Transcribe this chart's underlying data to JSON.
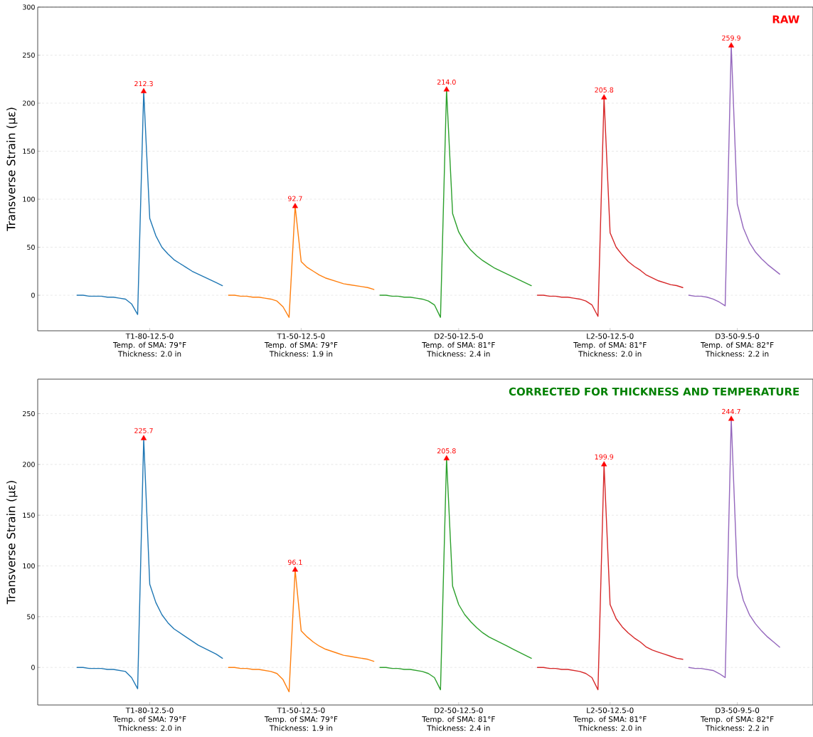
{
  "chart_data": [
    {
      "type": "line",
      "title": "RAW",
      "ylabel": "Transverse Strain (με)",
      "ylim": [
        -37,
        300
      ],
      "yticks": [
        0,
        50,
        100,
        150,
        200,
        250,
        300
      ],
      "grid": "y",
      "categories": [
        null,
        null,
        null,
        null,
        null,
        null,
        null,
        null,
        null,
        null,
        null,
        null,
        null,
        null,
        null,
        null,
        null,
        null,
        "T1-80-12.5-0\nTemp. of SMA: 79°F\nThickness: 2.0 in",
        null,
        null,
        null,
        null,
        null,
        null,
        null,
        null,
        null,
        null,
        null,
        null,
        null,
        null,
        null,
        null,
        null,
        null,
        null,
        null,
        null,
        null,
        null,
        null,
        "T1-50-12.5-0\nTemp. of SMA: 79°F\nThickness: 1.9 in",
        null,
        null,
        null,
        null,
        null,
        null,
        null,
        null,
        null,
        null,
        null,
        null,
        null,
        null,
        null,
        null,
        null,
        null,
        null,
        null,
        null,
        null,
        null,
        null,
        null,
        "D2-50-12.5-0\nTemp. of SMA: 81°F\nThickness: 2.4 in",
        null,
        null,
        null,
        null,
        null,
        null,
        null,
        null,
        null,
        null,
        null,
        null,
        null,
        null,
        null,
        null,
        null,
        null,
        null,
        null,
        null,
        null,
        null,
        null,
        "L2-50-12.5-0\nTemp. of SMA: 81°F\nThickness: 2.0 in",
        null,
        null,
        null,
        null,
        null,
        null,
        null,
        null,
        null,
        null,
        null,
        null,
        null,
        null,
        null,
        null,
        null,
        null,
        null,
        null,
        "D3-50-9.5-0\nTemp. of SMA: 82°F\nThickness: 2.2 in",
        null,
        null,
        null,
        null,
        null,
        null,
        null,
        null,
        null,
        null,
        null,
        null
      ],
      "series": [
        {
          "color": "#1f77b4",
          "values": [
            null,
            null,
            null,
            null,
            null,
            null,
            0,
            0,
            -1,
            -1,
            -1,
            -2,
            -2,
            -3,
            -4,
            -9,
            -20,
            212.3,
            80,
            62,
            50,
            43,
            37,
            33,
            29,
            25,
            22,
            19,
            16,
            13,
            10,
            null,
            null,
            null,
            null,
            null,
            null,
            null,
            null,
            null,
            null,
            null,
            null,
            null,
            null,
            null,
            null,
            null,
            null,
            null,
            null,
            null,
            null,
            null,
            null,
            null,
            null,
            null,
            null,
            null,
            null,
            null,
            null,
            null,
            null,
            null,
            null,
            null,
            null,
            null,
            null,
            null,
            null,
            null,
            null,
            null,
            null,
            null,
            null,
            null,
            null,
            null,
            null,
            null,
            null,
            null,
            null,
            null,
            null,
            null,
            null,
            null,
            null,
            null,
            null,
            null,
            null,
            null,
            null,
            null,
            null,
            null,
            null,
            null,
            null,
            null,
            null,
            null,
            null,
            null,
            null,
            null,
            null,
            null,
            null,
            null,
            null,
            null,
            null,
            null,
            null,
            null,
            null,
            null,
            null,
            null,
            null,
            null
          ]
        },
        {
          "color": "#ff7f0e",
          "values": [
            null,
            null,
            null,
            null,
            null,
            null,
            null,
            null,
            null,
            null,
            null,
            null,
            null,
            null,
            null,
            null,
            null,
            null,
            null,
            null,
            null,
            null,
            null,
            null,
            null,
            null,
            null,
            null,
            null,
            null,
            null,
            0,
            0,
            -1,
            -1,
            -2,
            -2,
            -3,
            -4,
            -6,
            -12,
            -23,
            92.7,
            35,
            29,
            25,
            21,
            18,
            16,
            14,
            12,
            11,
            10,
            9,
            8,
            6,
            null,
            null,
            null,
            null,
            null,
            null,
            null,
            null,
            null,
            null,
            null,
            null,
            null,
            null,
            null,
            null,
            null,
            null,
            null,
            null,
            null,
            null,
            null,
            null,
            null,
            null,
            null,
            null,
            null,
            null,
            null,
            null,
            null,
            null,
            null,
            null,
            null,
            null,
            null,
            null,
            null,
            null,
            null,
            null,
            null,
            null,
            null,
            null,
            null,
            null,
            null,
            null,
            null,
            null,
            null,
            null,
            null,
            null,
            null,
            null,
            null,
            null,
            null,
            null,
            null,
            null,
            null,
            null,
            null,
            null,
            null,
            null
          ]
        },
        {
          "color": "#2ca02c",
          "values": [
            null,
            null,
            null,
            null,
            null,
            null,
            null,
            null,
            null,
            null,
            null,
            null,
            null,
            null,
            null,
            null,
            null,
            null,
            null,
            null,
            null,
            null,
            null,
            null,
            null,
            null,
            null,
            null,
            null,
            null,
            null,
            null,
            null,
            null,
            null,
            null,
            null,
            null,
            null,
            null,
            null,
            null,
            null,
            null,
            null,
            null,
            null,
            null,
            null,
            null,
            null,
            null,
            null,
            null,
            null,
            null,
            0,
            0,
            -1,
            -1,
            -2,
            -2,
            -3,
            -4,
            -6,
            -10,
            -23,
            214.0,
            85,
            66,
            55,
            47,
            41,
            36,
            32,
            28,
            25,
            22,
            19,
            16,
            13,
            10,
            null,
            null,
            null,
            null,
            null,
            null,
            null,
            null,
            null,
            null,
            null,
            null,
            null,
            null,
            null,
            null,
            null,
            null,
            null,
            null,
            null,
            null,
            null,
            null,
            null,
            null,
            null,
            null,
            null,
            null,
            null,
            null,
            null,
            null,
            null,
            null,
            null,
            null,
            null,
            null,
            null,
            null,
            null,
            null,
            null,
            null
          ]
        },
        {
          "color": "#d62728",
          "values": [
            null,
            null,
            null,
            null,
            null,
            null,
            null,
            null,
            null,
            null,
            null,
            null,
            null,
            null,
            null,
            null,
            null,
            null,
            null,
            null,
            null,
            null,
            null,
            null,
            null,
            null,
            null,
            null,
            null,
            null,
            null,
            null,
            null,
            null,
            null,
            null,
            null,
            null,
            null,
            null,
            null,
            null,
            null,
            null,
            null,
            null,
            null,
            null,
            null,
            null,
            null,
            null,
            null,
            null,
            null,
            null,
            null,
            null,
            null,
            null,
            null,
            null,
            null,
            null,
            null,
            null,
            null,
            null,
            null,
            null,
            null,
            null,
            null,
            null,
            null,
            null,
            null,
            null,
            null,
            null,
            null,
            null,
            0,
            0,
            -1,
            -1,
            -2,
            -2,
            -3,
            -4,
            -6,
            -10,
            -22,
            205.8,
            65,
            50,
            42,
            35,
            30,
            26,
            21,
            18,
            15,
            13,
            11,
            10,
            8,
            null,
            null,
            null,
            null,
            null,
            null,
            null,
            null,
            null,
            null,
            null,
            null,
            null,
            null,
            null,
            null,
            null,
            null,
            null,
            null,
            null
          ]
        },
        {
          "color": "#9467bd",
          "values": [
            null,
            null,
            null,
            null,
            null,
            null,
            null,
            null,
            null,
            null,
            null,
            null,
            null,
            null,
            null,
            null,
            null,
            null,
            null,
            null,
            null,
            null,
            null,
            null,
            null,
            null,
            null,
            null,
            null,
            null,
            null,
            null,
            null,
            null,
            null,
            null,
            null,
            null,
            null,
            null,
            null,
            null,
            null,
            null,
            null,
            null,
            null,
            null,
            null,
            null,
            null,
            null,
            null,
            null,
            null,
            null,
            null,
            null,
            null,
            null,
            null,
            null,
            null,
            null,
            null,
            null,
            null,
            null,
            null,
            null,
            null,
            null,
            null,
            null,
            null,
            null,
            null,
            null,
            null,
            null,
            null,
            null,
            null,
            null,
            null,
            null,
            null,
            null,
            null,
            null,
            null,
            null,
            null,
            null,
            null,
            null,
            null,
            null,
            null,
            null,
            null,
            null,
            null,
            null,
            null,
            null,
            null,
            0,
            -1,
            -1,
            -2,
            -4,
            -7,
            -11,
            259.9,
            95,
            70,
            55,
            45,
            38,
            32,
            27,
            22,
            null,
            null,
            null,
            null,
            null
          ]
        },
        {
          "type": "scatter",
          "marker": "triangle",
          "color": "#ff0000",
          "values": [
            null,
            null,
            null,
            null,
            null,
            null,
            null,
            null,
            null,
            null,
            null,
            null,
            null,
            null,
            null,
            null,
            null,
            212.3,
            null,
            null,
            null,
            null,
            null,
            null,
            null,
            null,
            null,
            null,
            null,
            null,
            null,
            null,
            null,
            null,
            null,
            null,
            null,
            null,
            null,
            null,
            null,
            null,
            92.7,
            null,
            null,
            null,
            null,
            null,
            null,
            null,
            null,
            null,
            null,
            null,
            null,
            null,
            null,
            null,
            null,
            null,
            null,
            null,
            null,
            null,
            null,
            null,
            null,
            214.0,
            null,
            null,
            null,
            null,
            null,
            null,
            null,
            null,
            null,
            null,
            null,
            null,
            null,
            null,
            null,
            null,
            null,
            null,
            null,
            null,
            null,
            null,
            null,
            null,
            null,
            205.8,
            null,
            null,
            null,
            null,
            null,
            null,
            null,
            null,
            null,
            null,
            null,
            null,
            null,
            null,
            null,
            null,
            null,
            null,
            null,
            null,
            259.9,
            null,
            null,
            null,
            null,
            null,
            null,
            null,
            null,
            null,
            null,
            null,
            null,
            null
          ],
          "value_labels": [
            null,
            null,
            null,
            null,
            null,
            null,
            null,
            null,
            null,
            null,
            null,
            null,
            null,
            null,
            null,
            null,
            null,
            "212.3",
            null,
            null,
            null,
            null,
            null,
            null,
            null,
            null,
            null,
            null,
            null,
            null,
            null,
            null,
            null,
            null,
            null,
            null,
            null,
            null,
            null,
            null,
            null,
            null,
            "92.7",
            null,
            null,
            null,
            null,
            null,
            null,
            null,
            null,
            null,
            null,
            null,
            null,
            null,
            null,
            null,
            null,
            null,
            null,
            null,
            null,
            null,
            null,
            null,
            null,
            "214.0",
            null,
            null,
            null,
            null,
            null,
            null,
            null,
            null,
            null,
            null,
            null,
            null,
            null,
            null,
            null,
            null,
            null,
            null,
            null,
            null,
            null,
            null,
            null,
            null,
            null,
            "205.8",
            null,
            null,
            null,
            null,
            null,
            null,
            null,
            null,
            null,
            null,
            null,
            null,
            null,
            null,
            null,
            null,
            null,
            null,
            null,
            null,
            "259.9",
            null,
            null,
            null,
            null,
            null,
            null,
            null,
            null,
            null,
            null,
            null,
            null,
            null
          ]
        }
      ]
    },
    {
      "type": "line",
      "title": "CORRECTED FOR THICKNESS AND TEMPERATURE",
      "ylabel": "Transverse Strain (με)",
      "ylim": [
        -37,
        284
      ],
      "yticks": [
        0,
        50,
        100,
        150,
        200,
        250
      ],
      "grid": "y",
      "categories": [
        null,
        null,
        null,
        null,
        null,
        null,
        null,
        null,
        null,
        null,
        null,
        null,
        null,
        null,
        null,
        null,
        null,
        null,
        "T1-80-12.5-0\nTemp. of SMA: 79°F\nThickness: 2.0 in",
        null,
        null,
        null,
        null,
        null,
        null,
        null,
        null,
        null,
        null,
        null,
        null,
        null,
        null,
        null,
        null,
        null,
        null,
        null,
        null,
        null,
        null,
        null,
        null,
        "T1-50-12.5-0\nTemp. of SMA: 79°F\nThickness: 1.9 in",
        null,
        null,
        null,
        null,
        null,
        null,
        null,
        null,
        null,
        null,
        null,
        null,
        null,
        null,
        null,
        null,
        null,
        null,
        null,
        null,
        null,
        null,
        null,
        null,
        null,
        "D2-50-12.5-0\nTemp. of SMA: 81°F\nThickness: 2.4 in",
        null,
        null,
        null,
        null,
        null,
        null,
        null,
        null,
        null,
        null,
        null,
        null,
        null,
        null,
        null,
        null,
        null,
        null,
        null,
        null,
        null,
        null,
        null,
        null,
        "L2-50-12.5-0\nTemp. of SMA: 81°F\nThickness: 2.0 in",
        null,
        null,
        null,
        null,
        null,
        null,
        null,
        null,
        null,
        null,
        null,
        null,
        null,
        null,
        null,
        null,
        null,
        null,
        null,
        null,
        "D3-50-9.5-0\nTemp. of SMA: 82°F\nThickness: 2.2 in",
        null,
        null,
        null,
        null,
        null,
        null,
        null,
        null,
        null,
        null,
        null,
        null
      ],
      "series": [
        {
          "color": "#1f77b4",
          "values": [
            null,
            null,
            null,
            null,
            null,
            null,
            0,
            0,
            -1,
            -1,
            -1,
            -2,
            -2,
            -3,
            -4,
            -10,
            -21,
            225.7,
            82,
            64,
            52,
            44,
            38,
            34,
            30,
            26,
            22,
            19,
            16,
            13,
            9,
            null,
            null,
            null,
            null,
            null,
            null,
            null,
            null,
            null,
            null,
            null,
            null,
            null,
            null,
            null,
            null,
            null,
            null,
            null,
            null,
            null,
            null,
            null,
            null,
            null,
            null,
            null,
            null,
            null,
            null,
            null,
            null,
            null,
            null,
            null,
            null,
            null,
            null,
            null,
            null,
            null,
            null,
            null,
            null,
            null,
            null,
            null,
            null,
            null,
            null,
            null,
            null,
            null,
            null,
            null,
            null,
            null,
            null,
            null,
            null,
            null,
            null,
            null,
            null,
            null,
            null,
            null,
            null,
            null,
            null,
            null,
            null,
            null,
            null,
            null,
            null,
            null,
            null,
            null,
            null,
            null,
            null,
            null,
            null,
            null,
            null,
            null,
            null,
            null,
            null,
            null,
            null,
            null,
            null,
            null,
            null,
            null
          ]
        },
        {
          "color": "#ff7f0e",
          "values": [
            null,
            null,
            null,
            null,
            null,
            null,
            null,
            null,
            null,
            null,
            null,
            null,
            null,
            null,
            null,
            null,
            null,
            null,
            null,
            null,
            null,
            null,
            null,
            null,
            null,
            null,
            null,
            null,
            null,
            null,
            null,
            0,
            0,
            -1,
            -1,
            -2,
            -2,
            -3,
            -4,
            -6,
            -12,
            -24,
            96.1,
            36,
            30,
            25,
            21,
            18,
            16,
            14,
            12,
            11,
            10,
            9,
            8,
            6,
            null,
            null,
            null,
            null,
            null,
            null,
            null,
            null,
            null,
            null,
            null,
            null,
            null,
            null,
            null,
            null,
            null,
            null,
            null,
            null,
            null,
            null,
            null,
            null,
            null,
            null,
            null,
            null,
            null,
            null,
            null,
            null,
            null,
            null,
            null,
            null,
            null,
            null,
            null,
            null,
            null,
            null,
            null,
            null,
            null,
            null,
            null,
            null,
            null,
            null,
            null,
            null,
            null,
            null,
            null,
            null,
            null,
            null,
            null,
            null,
            null,
            null,
            null,
            null,
            null,
            null,
            null,
            null,
            null,
            null,
            null,
            null
          ]
        },
        {
          "color": "#2ca02c",
          "values": [
            null,
            null,
            null,
            null,
            null,
            null,
            null,
            null,
            null,
            null,
            null,
            null,
            null,
            null,
            null,
            null,
            null,
            null,
            null,
            null,
            null,
            null,
            null,
            null,
            null,
            null,
            null,
            null,
            null,
            null,
            null,
            null,
            null,
            null,
            null,
            null,
            null,
            null,
            null,
            null,
            null,
            null,
            null,
            null,
            null,
            null,
            null,
            null,
            null,
            null,
            null,
            null,
            null,
            null,
            null,
            null,
            0,
            0,
            -1,
            -1,
            -2,
            -2,
            -3,
            -4,
            -6,
            -10,
            -22,
            205.8,
            80,
            62,
            52,
            45,
            39,
            34,
            30,
            27,
            24,
            21,
            18,
            15,
            12,
            9,
            null,
            null,
            null,
            null,
            null,
            null,
            null,
            null,
            null,
            null,
            null,
            null,
            null,
            null,
            null,
            null,
            null,
            null,
            null,
            null,
            null,
            null,
            null,
            null,
            null,
            null,
            null,
            null,
            null,
            null,
            null,
            null,
            null,
            null,
            null,
            null,
            null,
            null,
            null,
            null,
            null,
            null,
            null,
            null,
            null,
            null
          ]
        },
        {
          "color": "#d62728",
          "values": [
            null,
            null,
            null,
            null,
            null,
            null,
            null,
            null,
            null,
            null,
            null,
            null,
            null,
            null,
            null,
            null,
            null,
            null,
            null,
            null,
            null,
            null,
            null,
            null,
            null,
            null,
            null,
            null,
            null,
            null,
            null,
            null,
            null,
            null,
            null,
            null,
            null,
            null,
            null,
            null,
            null,
            null,
            null,
            null,
            null,
            null,
            null,
            null,
            null,
            null,
            null,
            null,
            null,
            null,
            null,
            null,
            null,
            null,
            null,
            null,
            null,
            null,
            null,
            null,
            null,
            null,
            null,
            null,
            null,
            null,
            null,
            null,
            null,
            null,
            null,
            null,
            null,
            null,
            null,
            null,
            null,
            null,
            0,
            0,
            -1,
            -1,
            -2,
            -2,
            -3,
            -4,
            -6,
            -10,
            -22,
            199.9,
            62,
            48,
            40,
            34,
            29,
            25,
            20,
            17,
            15,
            13,
            11,
            9,
            8,
            null,
            null,
            null,
            null,
            null,
            null,
            null,
            null,
            null,
            null,
            null,
            null,
            null,
            null,
            null,
            null,
            null,
            null,
            null,
            null,
            null
          ]
        },
        {
          "color": "#9467bd",
          "values": [
            null,
            null,
            null,
            null,
            null,
            null,
            null,
            null,
            null,
            null,
            null,
            null,
            null,
            null,
            null,
            null,
            null,
            null,
            null,
            null,
            null,
            null,
            null,
            null,
            null,
            null,
            null,
            null,
            null,
            null,
            null,
            null,
            null,
            null,
            null,
            null,
            null,
            null,
            null,
            null,
            null,
            null,
            null,
            null,
            null,
            null,
            null,
            null,
            null,
            null,
            null,
            null,
            null,
            null,
            null,
            null,
            null,
            null,
            null,
            null,
            null,
            null,
            null,
            null,
            null,
            null,
            null,
            null,
            null,
            null,
            null,
            null,
            null,
            null,
            null,
            null,
            null,
            null,
            null,
            null,
            null,
            null,
            null,
            null,
            null,
            null,
            null,
            null,
            null,
            null,
            null,
            null,
            null,
            null,
            null,
            null,
            null,
            null,
            null,
            null,
            null,
            null,
            null,
            null,
            null,
            null,
            null,
            0,
            -1,
            -1,
            -2,
            -3,
            -6,
            -10,
            244.7,
            90,
            66,
            52,
            43,
            36,
            30,
            25,
            20,
            null,
            null,
            null,
            null,
            null
          ]
        },
        {
          "type": "scatter",
          "marker": "triangle",
          "color": "#ff0000",
          "values": [
            null,
            null,
            null,
            null,
            null,
            null,
            null,
            null,
            null,
            null,
            null,
            null,
            null,
            null,
            null,
            null,
            null,
            225.7,
            null,
            null,
            null,
            null,
            null,
            null,
            null,
            null,
            null,
            null,
            null,
            null,
            null,
            null,
            null,
            null,
            null,
            null,
            null,
            null,
            null,
            null,
            null,
            null,
            96.1,
            null,
            null,
            null,
            null,
            null,
            null,
            null,
            null,
            null,
            null,
            null,
            null,
            null,
            null,
            null,
            null,
            null,
            null,
            null,
            null,
            null,
            null,
            null,
            null,
            205.8,
            null,
            null,
            null,
            null,
            null,
            null,
            null,
            null,
            null,
            null,
            null,
            null,
            null,
            null,
            null,
            null,
            null,
            null,
            null,
            null,
            null,
            null,
            null,
            null,
            null,
            199.9,
            null,
            null,
            null,
            null,
            null,
            null,
            null,
            null,
            null,
            null,
            null,
            null,
            null,
            null,
            null,
            null,
            null,
            null,
            null,
            null,
            244.7,
            null,
            null,
            null,
            null,
            null,
            null,
            null,
            null,
            null,
            null,
            null,
            null,
            null
          ],
          "value_labels": [
            null,
            null,
            null,
            null,
            null,
            null,
            null,
            null,
            null,
            null,
            null,
            null,
            null,
            null,
            null,
            null,
            null,
            "225.7",
            null,
            null,
            null,
            null,
            null,
            null,
            null,
            null,
            null,
            null,
            null,
            null,
            null,
            null,
            null,
            null,
            null,
            null,
            null,
            null,
            null,
            null,
            null,
            null,
            "96.1",
            null,
            null,
            null,
            null,
            null,
            null,
            null,
            null,
            null,
            null,
            null,
            null,
            null,
            null,
            null,
            null,
            null,
            null,
            null,
            null,
            null,
            null,
            null,
            null,
            "205.8",
            null,
            null,
            null,
            null,
            null,
            null,
            null,
            null,
            null,
            null,
            null,
            null,
            null,
            null,
            null,
            null,
            null,
            null,
            null,
            null,
            null,
            null,
            null,
            null,
            null,
            "199.9",
            null,
            null,
            null,
            null,
            null,
            null,
            null,
            null,
            null,
            null,
            null,
            null,
            null,
            null,
            null,
            null,
            null,
            null,
            null,
            null,
            "244.7",
            null,
            null,
            null,
            null,
            null,
            null,
            null,
            null,
            null,
            null,
            null,
            null,
            null
          ]
        }
      ]
    }
  ]
}
